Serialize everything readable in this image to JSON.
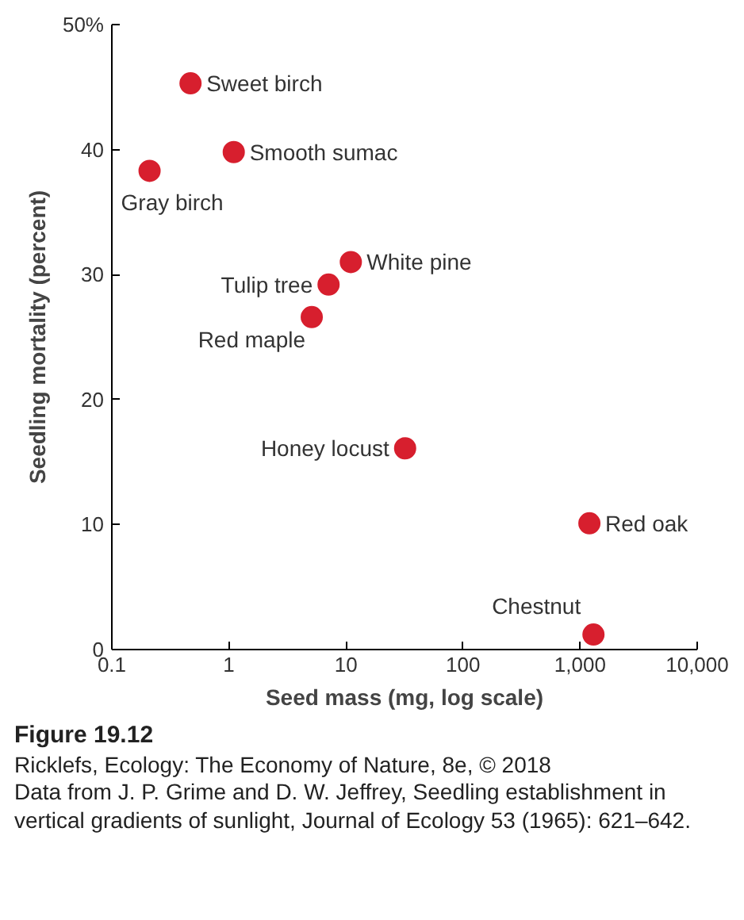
{
  "chart_data": {
    "type": "scatter",
    "xlabel": "Seed mass (mg, log scale)",
    "ylabel": "Seedling mortality (percent)",
    "log": "x",
    "x": [
      0.47,
      1.1,
      0.21,
      11,
      7.1,
      5.1,
      32,
      1200,
      1300
    ],
    "series": [
      {
        "color": "#d71f2e",
        "values": [
          45.3,
          39.8,
          38.3,
          31.0,
          29.2,
          26.6,
          16.1,
          10.1,
          1.2
        ]
      }
    ],
    "marker": "circle",
    "xlim": [
      0.1,
      10000
    ],
    "ylim": [
      0,
      50
    ],
    "xticks": [
      0.1,
      1,
      10,
      100,
      {
        "value": 1000,
        "label": "1,000"
      },
      {
        "value": 10000,
        "label": "10,000"
      }
    ],
    "yticks": [
      0,
      10,
      20,
      30,
      40,
      {
        "value": 50,
        "label": "50%"
      }
    ],
    "grid": false,
    "annotations": [
      {
        "text": "Sweet birch",
        "x": 0.47,
        "y": 45.3
      },
      {
        "text": "Smooth sumac",
        "x": 1.1,
        "y": 39.8
      },
      {
        "text": "Gray birch",
        "x": 0.21,
        "y": 38.3
      },
      {
        "text": "White pine",
        "x": 11,
        "y": 31.0
      },
      {
        "text": "Tulip tree",
        "x": 7.1,
        "y": 29.2
      },
      {
        "text": "Red maple",
        "x": 5.1,
        "y": 26.6
      },
      {
        "text": "Honey locust",
        "x": 32,
        "y": 16.1
      },
      {
        "text": "Red oak",
        "x": 1200,
        "y": 10.1
      },
      {
        "text": "Chestnut",
        "x": 1300,
        "y": 1.2
      },
      "Figure 19.12",
      "Ricklefs, Ecology: The Economy of Nature, 8e, © 2018",
      "Data from J. P. Grime and D. W. Jeffrey, Seedling establishment in vertical gradients of sunlight, Journal of Ecology 53 (1965): 621–642."
    ]
  }
}
